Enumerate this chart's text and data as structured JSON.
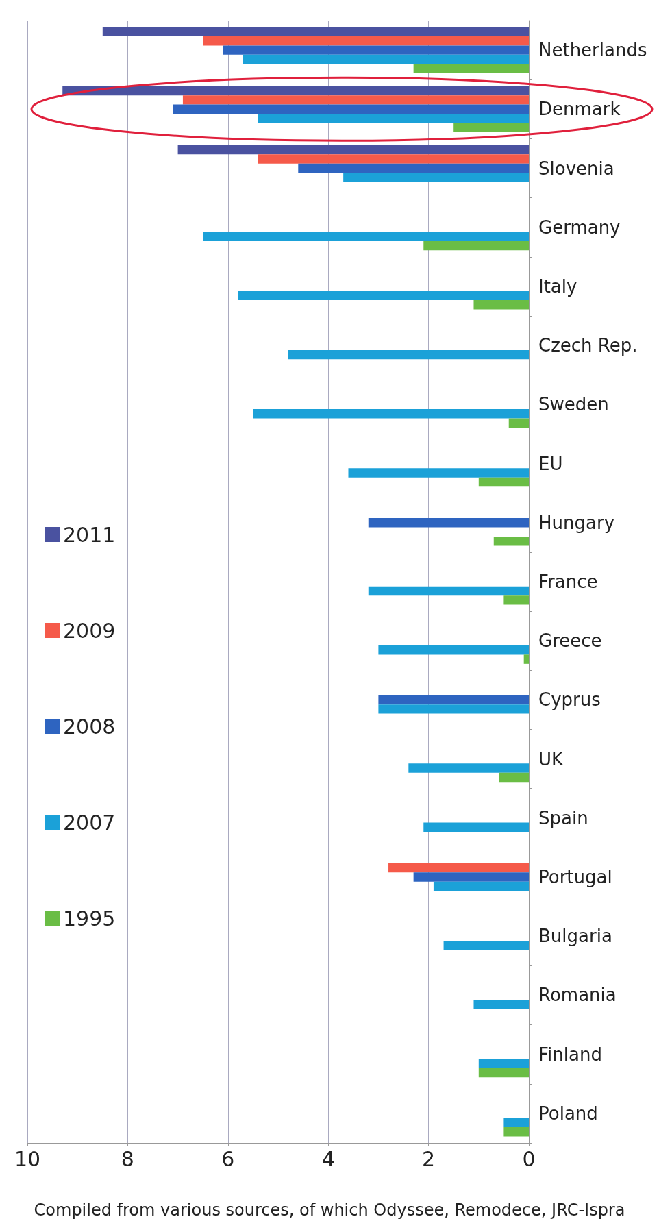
{
  "chart_data": {
    "type": "bar",
    "orientation": "horizontal",
    "categories": [
      "Netherlands",
      "Denmark",
      "Slovenia",
      "Germany",
      "Italy",
      "Czech Rep.",
      "Sweden",
      "EU",
      "Hungary",
      "France",
      "Greece",
      "Cyprus",
      "UK",
      "Spain",
      "Portugal",
      "Bulgaria",
      "Romania",
      "Finland",
      "Poland"
    ],
    "series": [
      {
        "name": "2011",
        "color": "#4a52a0",
        "values": [
          8.5,
          9.3,
          7.0,
          null,
          null,
          null,
          null,
          null,
          null,
          null,
          null,
          null,
          null,
          null,
          null,
          null,
          null,
          null,
          null
        ]
      },
      {
        "name": "2009",
        "color": "#f55a4a",
        "values": [
          6.5,
          6.9,
          5.4,
          null,
          null,
          null,
          null,
          null,
          null,
          null,
          null,
          null,
          null,
          null,
          2.8,
          null,
          null,
          null,
          null
        ]
      },
      {
        "name": "2008",
        "color": "#2e64c0",
        "values": [
          6.1,
          7.1,
          4.6,
          null,
          null,
          null,
          null,
          null,
          3.2,
          null,
          null,
          3.0,
          null,
          null,
          2.3,
          null,
          null,
          null,
          null
        ]
      },
      {
        "name": "2007",
        "color": "#1ba1d8",
        "values": [
          5.7,
          5.4,
          3.7,
          6.5,
          5.8,
          4.8,
          5.5,
          3.6,
          null,
          3.2,
          3.0,
          3.0,
          2.4,
          2.1,
          1.9,
          1.7,
          1.1,
          1.0,
          0.5
        ]
      },
      {
        "name": "1995",
        "color": "#6abd45",
        "values": [
          2.3,
          1.5,
          null,
          2.1,
          1.1,
          null,
          0.4,
          1.0,
          0.7,
          0.5,
          0.1,
          null,
          0.6,
          null,
          null,
          null,
          null,
          1.0,
          0.5
        ]
      }
    ],
    "xlim": [
      10,
      0
    ],
    "xticks": [
      0,
      2,
      4,
      6,
      8,
      10
    ],
    "grid": "x",
    "legend": "left",
    "annotations": [
      "Compiled from various sources, of which Odyssee, Remodece, JRC-Ispra"
    ]
  }
}
